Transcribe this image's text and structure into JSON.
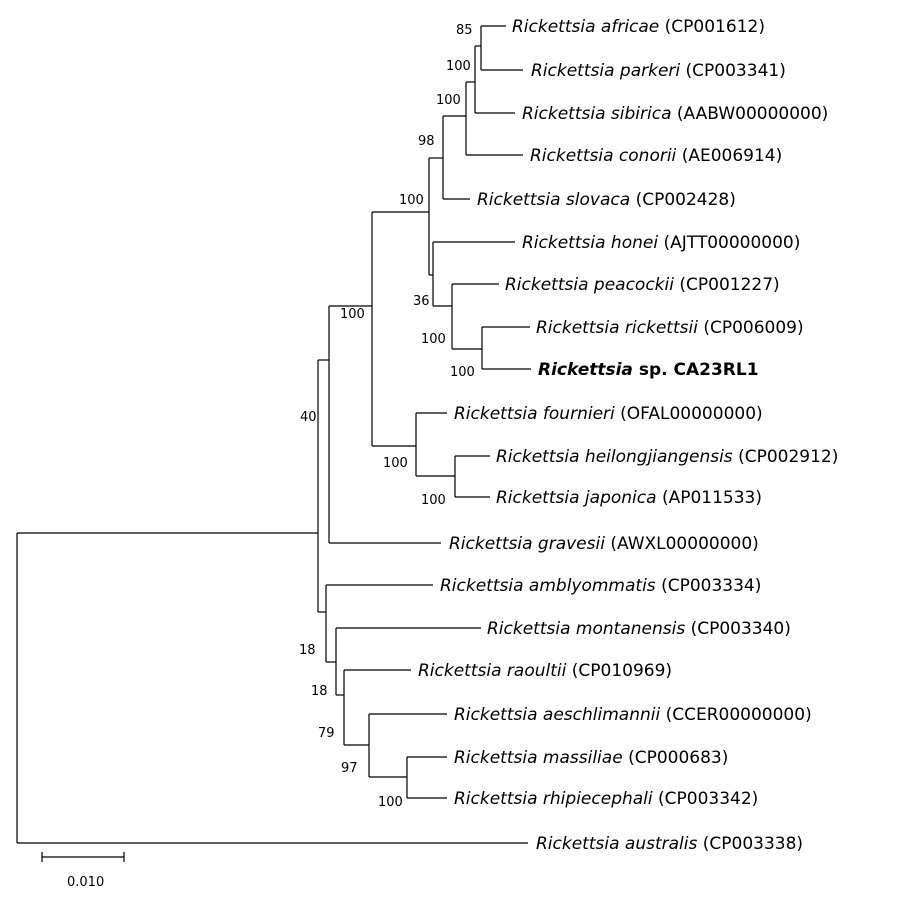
{
  "tree": {
    "taxa": {
      "africae": {
        "genus": "Rickettsia",
        "species": "africae",
        "accession": "(CP001612)"
      },
      "parkeri": {
        "genus": "Rickettsia",
        "species": "parkeri",
        "accession": "(CP003341)"
      },
      "sibirica": {
        "genus": "Rickettsia",
        "species": "sibirica",
        "accession": "(AABW00000000)"
      },
      "conorii": {
        "genus": "Rickettsia",
        "species": "conorii",
        "accession": "(AE006914)"
      },
      "slovaca": {
        "genus": "Rickettsia",
        "species": "slovaca",
        "accession": "(CP002428)"
      },
      "honei": {
        "genus": "Rickettsia",
        "species": "honei",
        "accession": "(AJTT00000000)"
      },
      "peacockii": {
        "genus": "Rickettsia",
        "species": "peacockii",
        "accession": "(CP001227)"
      },
      "rickettsii": {
        "genus": "Rickettsia",
        "species": "rickettsii",
        "accession": " (CP006009)"
      },
      "ca23rl1": {
        "genus": "Rickettsia",
        "species": "sp. CA23RL1",
        "accession": ""
      },
      "fournieri": {
        "genus": "Rickettsia",
        "species": "fournieri",
        "accession": "(OFAL00000000)"
      },
      "heilongjiangensis": {
        "genus": "Rickettsia",
        "species": "heilongjiangensis",
        "accession": "(CP002912)"
      },
      "japonica": {
        "genus": "Rickettsia",
        "species": "japonica",
        "accession": "(AP011533)"
      },
      "gravesii": {
        "genus": "Rickettsia",
        "species": "gravesii",
        "accession": "(AWXL00000000)"
      },
      "amblyommatis": {
        "genus": "Rickettsia",
        "species": "amblyommatis",
        "accession": "(CP003334)"
      },
      "montanensis": {
        "genus": "Rickettsia",
        "species": "montanensis",
        "accession": "(CP003340)"
      },
      "raoultii": {
        "genus": "Rickettsia",
        "species": "raoultii",
        "accession": "(CP010969)"
      },
      "aeschlimannii": {
        "genus": "Rickettsia",
        "species": "aeschlimannii",
        "accession": "(CCER00000000)"
      },
      "massiliae": {
        "genus": "Rickettsia",
        "species": "massiliae",
        "accession": "(CP000683)"
      },
      "rhipicephali": {
        "genus": "Rickettsia",
        "species": "rhipiecephali",
        "accession": "(CP003342)"
      },
      "australis": {
        "genus": "Rickettsia",
        "species": "australis",
        "accession": "(CP003338)"
      }
    },
    "bootstrap": {
      "africae_parkeri": "85",
      "sibirica_clade": "100",
      "conorii_clade": "100",
      "slovaca_clade": "98",
      "spotted_core": "100",
      "honei_node": "36",
      "peacockii_node": "100",
      "rickettsii_ca23": "100",
      "main_sfg": "100",
      "fournieri_clade": "100",
      "heilong_japonica": "100",
      "root_ingroup": "40",
      "amblyommatis_node": "18",
      "montanensis_node": "18",
      "raoultii_node": "79",
      "aeschlimannii_node": "97",
      "massiliae_rhipi": "100"
    },
    "scale_bar": {
      "label": "0.010"
    }
  }
}
